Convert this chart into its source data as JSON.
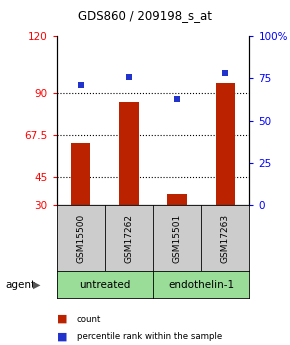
{
  "title": "GDS860 / 209198_s_at",
  "samples": [
    "GSM15500",
    "GSM17262",
    "GSM15501",
    "GSM17263"
  ],
  "bar_values": [
    63,
    85,
    36,
    95
  ],
  "percentile_values": [
    71,
    76,
    63,
    78
  ],
  "bar_color": "#bb2200",
  "dot_color": "#2233cc",
  "ylim_left": [
    30,
    120
  ],
  "ylim_right": [
    0,
    100
  ],
  "yticks_left": [
    30,
    45,
    67.5,
    90,
    120
  ],
  "ytick_labels_left": [
    "30",
    "45",
    "67.5",
    "90",
    "120"
  ],
  "yticks_right": [
    0,
    25,
    50,
    75,
    100
  ],
  "ytick_labels_right": [
    "0",
    "25",
    "50",
    "75",
    "100%"
  ],
  "hlines": [
    90,
    67.5,
    45
  ],
  "groups": [
    {
      "label": "untreated",
      "indices": [
        0,
        1
      ],
      "color": "#99dd99"
    },
    {
      "label": "endothelin-1",
      "indices": [
        2,
        3
      ],
      "color": "#99dd99"
    }
  ],
  "bar_bottom": 30,
  "bar_width": 0.4,
  "legend": [
    {
      "label": "count",
      "color": "#bb2200"
    },
    {
      "label": "percentile rank within the sample",
      "color": "#2233cc"
    }
  ],
  "sample_box_color": "#cccccc",
  "group_box_color": "#99dd99"
}
